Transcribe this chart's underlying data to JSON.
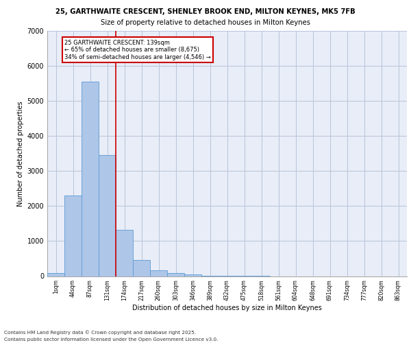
{
  "title1": "25, GARTHWAITE CRESCENT, SHENLEY BROOK END, MILTON KEYNES, MK5 7FB",
  "title2": "Size of property relative to detached houses in Milton Keynes",
  "xlabel": "Distribution of detached houses by size in Milton Keynes",
  "ylabel": "Number of detached properties",
  "categories": [
    "1sqm",
    "44sqm",
    "87sqm",
    "131sqm",
    "174sqm",
    "217sqm",
    "260sqm",
    "303sqm",
    "346sqm",
    "389sqm",
    "432sqm",
    "475sqm",
    "518sqm",
    "561sqm",
    "604sqm",
    "648sqm",
    "691sqm",
    "734sqm",
    "777sqm",
    "820sqm",
    "863sqm"
  ],
  "values": [
    80,
    2300,
    5550,
    3450,
    1320,
    460,
    170,
    90,
    50,
    10,
    5,
    2,
    1,
    0,
    0,
    0,
    0,
    0,
    0,
    0,
    0
  ],
  "bar_color": "#aec6e8",
  "bar_edge_color": "#5b9bd5",
  "red_line_x": 3.5,
  "annotation_text": "25 GARTHWAITE CRESCENT: 139sqm\n← 65% of detached houses are smaller (8,675)\n34% of semi-detached houses are larger (4,546) →",
  "annotation_box_color": "#ffffff",
  "annotation_box_edge": "#cc0000",
  "red_line_color": "#cc0000",
  "bg_color": "#e8edf8",
  "grid_color": "#b8c4d8",
  "ylim": [
    0,
    7000
  ],
  "footnote1": "Contains HM Land Registry data © Crown copyright and database right 2025.",
  "footnote2": "Contains public sector information licensed under the Open Government Licence v3.0."
}
